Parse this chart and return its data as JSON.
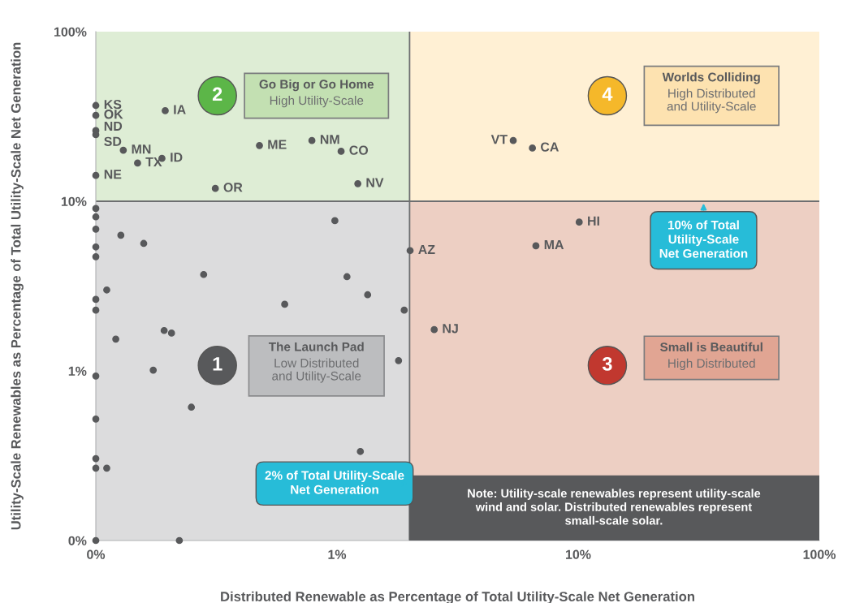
{
  "chart_data": {
    "type": "scatter",
    "xlabel": "Distributed Renewable as Percentage of Total Utility-Scale Net Generation",
    "ylabel": "Utility-Scale Renewables as Percentage of Total Utility-Scale Net Generation",
    "log": "xy",
    "grid": false,
    "marker": "circle",
    "xlim": [
      0.1,
      100
    ],
    "ylim": [
      0.1,
      100
    ],
    "xticks": [
      {
        "value": 0.1,
        "label": "0%"
      },
      {
        "value": 1,
        "label": "1%"
      },
      {
        "value": 10,
        "label": "10%"
      },
      {
        "value": 100,
        "label": "100%"
      }
    ],
    "yticks": [
      {
        "value": 0.1,
        "label": "0%"
      },
      {
        "value": 1,
        "label": "1%"
      },
      {
        "value": 10,
        "label": "10%"
      },
      {
        "value": 100,
        "label": "100%"
      }
    ],
    "series": [
      {
        "color": "#58595b",
        "x": [
          0.1,
          0.1,
          0.1,
          0.1,
          0.13,
          0.149,
          0.188,
          0.194,
          0.1,
          0.313,
          0.477,
          0.787,
          1.04,
          1.22,
          5.38,
          6.46,
          10.1,
          6.68,
          2.53,
          2.01,
          0.1,
          0.1,
          0.1,
          0.127,
          0.158,
          0.1,
          0.1,
          0.98,
          0.28,
          1.1,
          0.111,
          1.34,
          0.607,
          0.1,
          0.1,
          1.9,
          0.192,
          0.206,
          0.121,
          1.8,
          0.173,
          0.1,
          0.249,
          0.1,
          1.25,
          0.1,
          0.1,
          0.111,
          0.1,
          0.222
        ],
        "values": [
          36.7,
          32.1,
          26.1,
          24.7,
          20.0,
          16.8,
          17.9,
          34.2,
          14.2,
          11.9,
          21.3,
          22.8,
          19.7,
          12.7,
          22.8,
          20.6,
          7.54,
          5.46,
          1.75,
          5.12,
          9.06,
          8.09,
          6.85,
          6.31,
          5.64,
          5.38,
          4.71,
          7.68,
          3.7,
          3.59,
          3.0,
          2.81,
          2.47,
          2.64,
          2.28,
          2.28,
          1.73,
          1.67,
          1.54,
          1.15,
          1.01,
          0.933,
          0.611,
          0.52,
          0.335,
          0.304,
          0.267,
          0.267,
          0.1,
          0.1
        ]
      }
    ],
    "ref_lines": [
      {
        "axis": "y",
        "value": 10,
        "label": "10% of Total\nUtility-Scale\nNet Generation",
        "color": "#6d6e70"
      },
      {
        "axis": "x",
        "value": 2,
        "label": "2% of Total Utility-Scale\nNet Generation",
        "color": "#6d6e70"
      }
    ],
    "annotations": [
      {
        "text": "KS",
        "x": 0.1,
        "y": 36.7
      },
      {
        "text": "OK",
        "x": 0.1,
        "y": 32.1
      },
      {
        "text": "ND",
        "x": 0.1,
        "y": 26.1
      },
      {
        "text": "SD",
        "x": 0.1,
        "y": 24.7
      },
      {
        "text": "MN",
        "x": 0.13,
        "y": 20.0
      },
      {
        "text": "TX",
        "x": 0.149,
        "y": 16.8
      },
      {
        "text": "ID",
        "x": 0.188,
        "y": 17.9
      },
      {
        "text": "IA",
        "x": 0.194,
        "y": 34.2
      },
      {
        "text": "NE",
        "x": 0.1,
        "y": 14.2
      },
      {
        "text": "OR",
        "x": 0.313,
        "y": 11.9
      },
      {
        "text": "ME",
        "x": 0.477,
        "y": 21.3
      },
      {
        "text": "NM",
        "x": 0.787,
        "y": 22.8
      },
      {
        "text": "CO",
        "x": 1.04,
        "y": 19.7
      },
      {
        "text": "NV",
        "x": 1.22,
        "y": 12.7
      },
      {
        "text": "VT",
        "x": 5.38,
        "y": 22.8
      },
      {
        "text": "CA",
        "x": 6.46,
        "y": 20.6
      },
      {
        "text": "HI",
        "x": 10.1,
        "y": 7.54
      },
      {
        "text": "MA",
        "x": 6.68,
        "y": 5.46
      },
      {
        "text": "NJ",
        "x": 2.53,
        "y": 1.75
      },
      {
        "text": "AZ",
        "x": 2.01,
        "y": 5.12
      },
      "1",
      "The Launch Pad",
      "Low Distributed\nand Utility-Scale",
      "2",
      "Go Big or Go Home",
      "High Utility-Scale",
      "3",
      "Small is Beautiful",
      "High Distributed",
      "4",
      "Worlds Colliding",
      "High Distributed\nand Utility-Scale",
      "Note: Utility-scale renewables represent utility-scale\nwind and solar. Distributed renewables represent\nsmall-scale solar."
    ]
  }
}
